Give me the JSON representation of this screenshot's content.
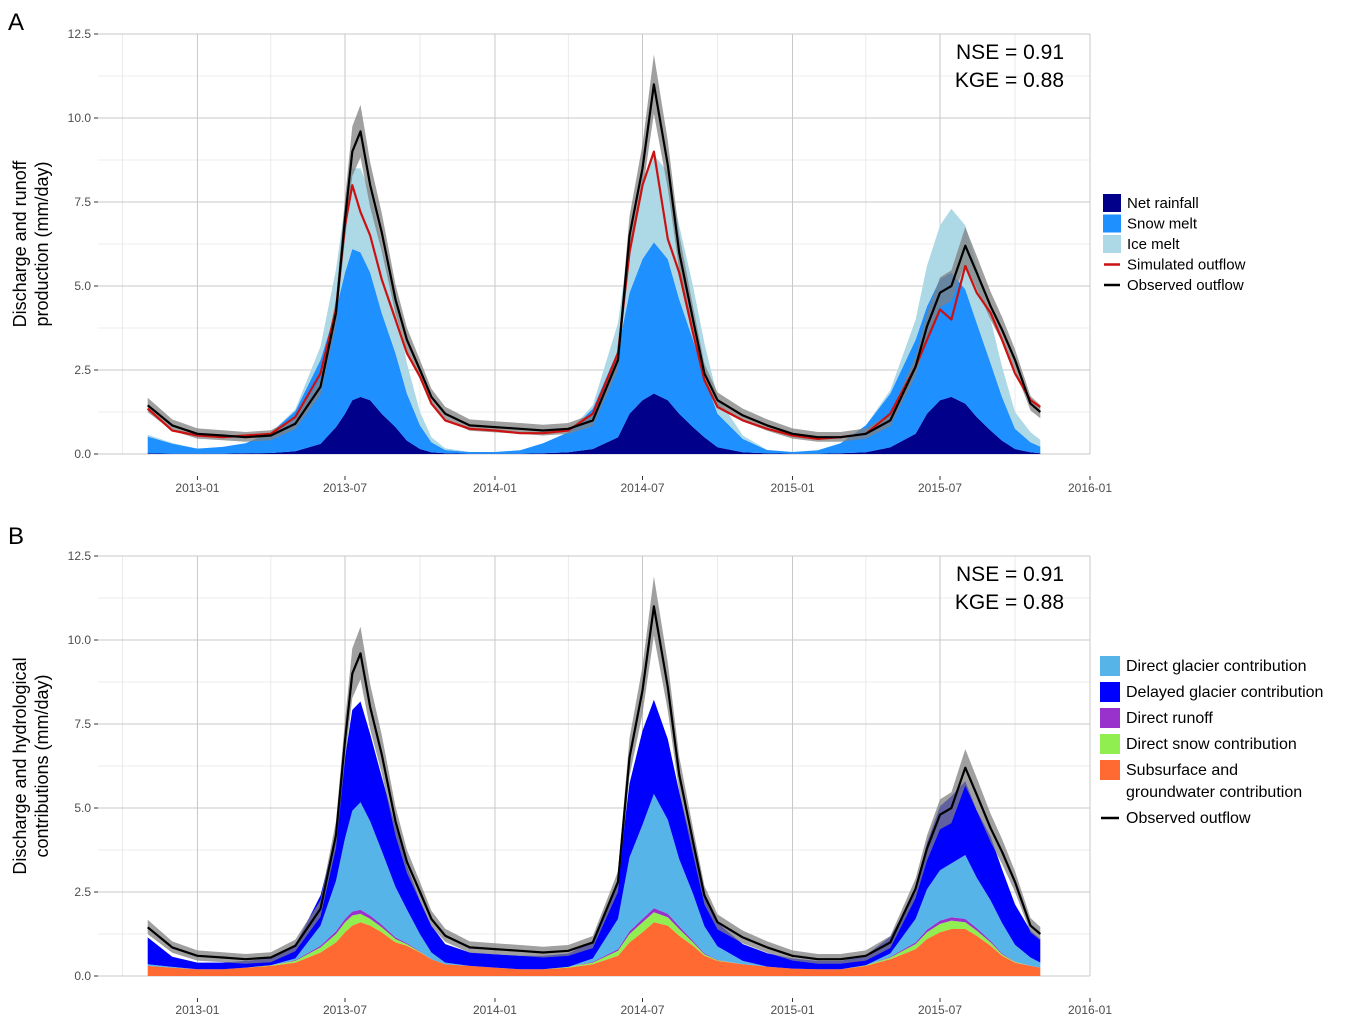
{
  "chart_data": [
    {
      "panel_label": "A",
      "type": "area",
      "ylabel": "Discharge and runoff\nproduction (mm/day)",
      "ylim": [
        0,
        12.5
      ],
      "y_ticks": [
        "0.0",
        "2.5",
        "5.0",
        "7.5",
        "10.0",
        "12.5"
      ],
      "y_tick_values": [
        0,
        2.5,
        5,
        7.5,
        10,
        12.5
      ],
      "x_ticks": [
        "2013-01",
        "2013-07",
        "2014-01",
        "2014-07",
        "2015-01",
        "2015-07",
        "2016-01"
      ],
      "x_tick_dates": [
        "2013-01-01",
        "2013-07-01",
        "2014-01-01",
        "2014-07-01",
        "2015-01-01",
        "2015-07-01",
        "2016-01-01"
      ],
      "xlim": [
        "2012-09-01",
        "2016-01-01"
      ],
      "grid": true,
      "legend_position": "right",
      "annotations": [
        "NSE = 0.91",
        "KGE = 0.88"
      ],
      "legend": [
        {
          "label": "Net rainfall",
          "kind": "fill",
          "color": "#00008b"
        },
        {
          "label": "Snow melt",
          "kind": "fill",
          "color": "#1e90ff"
        },
        {
          "label": "Ice melt",
          "kind": "fill",
          "color": "#add8e6"
        },
        {
          "label": "Simulated outflow",
          "kind": "line",
          "color": "#cc1111"
        },
        {
          "label": "Observed outflow",
          "kind": "line",
          "color": "#000000"
        }
      ],
      "x": [
        "2012-11-01",
        "2012-12-01",
        "2013-01-01",
        "2013-02-01",
        "2013-03-01",
        "2013-04-01",
        "2013-05-01",
        "2013-06-01",
        "2013-06-20",
        "2013-07-01",
        "2013-07-10",
        "2013-07-20",
        "2013-08-01",
        "2013-08-15",
        "2013-09-01",
        "2013-09-15",
        "2013-10-01",
        "2013-10-15",
        "2013-11-01",
        "2013-12-01",
        "2014-01-01",
        "2014-02-01",
        "2014-03-01",
        "2014-04-01",
        "2014-05-01",
        "2014-06-01",
        "2014-06-15",
        "2014-07-01",
        "2014-07-15",
        "2014-08-01",
        "2014-08-15",
        "2014-09-01",
        "2014-09-15",
        "2014-10-01",
        "2014-11-01",
        "2014-12-01",
        "2015-01-01",
        "2015-02-01",
        "2015-03-01",
        "2015-04-01",
        "2015-05-01",
        "2015-06-01",
        "2015-06-15",
        "2015-07-01",
        "2015-07-15",
        "2015-08-01",
        "2015-08-15",
        "2015-09-01",
        "2015-09-15",
        "2015-10-01",
        "2015-10-20",
        "2015-11-01"
      ],
      "series": [
        {
          "name": "Net rainfall",
          "color": "#00008b",
          "values": [
            0.02,
            0.01,
            0.01,
            0.01,
            0.02,
            0.03,
            0.08,
            0.3,
            0.8,
            1.2,
            1.6,
            1.7,
            1.6,
            1.2,
            0.8,
            0.4,
            0.15,
            0.05,
            0.02,
            0.01,
            0.01,
            0.01,
            0.02,
            0.05,
            0.15,
            0.5,
            1.2,
            1.6,
            1.8,
            1.6,
            1.2,
            0.8,
            0.5,
            0.2,
            0.05,
            0.02,
            0.01,
            0.01,
            0.02,
            0.05,
            0.2,
            0.6,
            1.2,
            1.6,
            1.7,
            1.5,
            1.1,
            0.7,
            0.4,
            0.15,
            0.05,
            0.02
          ]
        },
        {
          "name": "Snow melt",
          "color": "#1e90ff",
          "values": [
            0.5,
            0.3,
            0.15,
            0.2,
            0.3,
            0.6,
            1.2,
            2.5,
            3.5,
            4.2,
            4.5,
            4.3,
            3.8,
            3.0,
            2.2,
            1.4,
            0.7,
            0.3,
            0.1,
            0.05,
            0.05,
            0.1,
            0.3,
            0.6,
            1.2,
            2.6,
            3.6,
            4.2,
            4.5,
            4.2,
            3.4,
            2.6,
            1.8,
            1.0,
            0.4,
            0.1,
            0.05,
            0.1,
            0.3,
            0.8,
            1.6,
            2.8,
            3.2,
            3.6,
            3.7,
            3.4,
            2.8,
            2.0,
            1.3,
            0.6,
            0.3,
            0.2
          ]
        },
        {
          "name": "Ice melt",
          "color": "#add8e6",
          "values": [
            0.05,
            0.02,
            0.0,
            0.0,
            0.0,
            0.0,
            0.05,
            0.4,
            1.2,
            2.0,
            2.4,
            2.5,
            2.4,
            2.0,
            1.5,
            0.9,
            0.4,
            0.15,
            0.05,
            0.0,
            0.0,
            0.0,
            0.0,
            0.0,
            0.1,
            0.8,
            1.6,
            2.2,
            2.6,
            2.6,
            2.2,
            1.6,
            1.0,
            0.5,
            0.1,
            0.0,
            0.0,
            0.0,
            0.0,
            0.0,
            0.1,
            0.6,
            1.2,
            1.6,
            1.9,
            1.9,
            1.7,
            1.3,
            0.9,
            0.5,
            0.3,
            0.2
          ]
        },
        {
          "name": "Simulated outflow",
          "color": "#cc1111",
          "values": [
            1.35,
            0.7,
            0.55,
            0.5,
            0.55,
            0.6,
            1.1,
            2.4,
            4.3,
            6.8,
            8.0,
            7.2,
            6.5,
            5.2,
            4.0,
            3.0,
            2.3,
            1.5,
            1.0,
            0.75,
            0.7,
            0.62,
            0.62,
            0.7,
            1.2,
            3.0,
            6.0,
            8.0,
            9.0,
            6.4,
            5.4,
            3.6,
            2.2,
            1.4,
            1.0,
            0.75,
            0.55,
            0.45,
            0.5,
            0.6,
            1.2,
            2.6,
            3.4,
            4.3,
            4.0,
            5.6,
            4.8,
            4.2,
            3.4,
            2.4,
            1.6,
            1.4
          ]
        },
        {
          "name": "Observed outflow",
          "color": "#000000",
          "values": [
            1.45,
            0.85,
            0.6,
            0.55,
            0.5,
            0.55,
            0.9,
            2.0,
            4.2,
            7.0,
            9.0,
            9.6,
            8.0,
            6.6,
            4.6,
            3.4,
            2.5,
            1.7,
            1.2,
            0.85,
            0.8,
            0.75,
            0.7,
            0.75,
            1.0,
            2.8,
            6.5,
            8.5,
            11.0,
            8.6,
            6.0,
            4.0,
            2.4,
            1.6,
            1.15,
            0.85,
            0.6,
            0.5,
            0.5,
            0.6,
            1.0,
            2.6,
            3.8,
            4.8,
            5.0,
            6.2,
            5.4,
            4.4,
            3.7,
            2.8,
            1.5,
            1.25
          ]
        }
      ]
    },
    {
      "panel_label": "B",
      "type": "area",
      "ylabel": "Discharge and hydrological\ncontributions (mm/day)",
      "ylim": [
        0,
        12.5
      ],
      "y_ticks": [
        "0.0",
        "2.5",
        "5.0",
        "7.5",
        "10.0",
        "12.5"
      ],
      "y_tick_values": [
        0,
        2.5,
        5,
        7.5,
        10,
        12.5
      ],
      "x_ticks": [
        "2013-01",
        "2013-07",
        "2014-01",
        "2014-07",
        "2015-01",
        "2015-07",
        "2016-01"
      ],
      "x_tick_dates": [
        "2013-01-01",
        "2013-07-01",
        "2014-01-01",
        "2014-07-01",
        "2015-01-01",
        "2015-07-01",
        "2016-01-01"
      ],
      "xlim": [
        "2012-09-01",
        "2016-01-01"
      ],
      "grid": true,
      "legend_position": "right",
      "annotations": [
        "NSE = 0.91",
        "KGE = 0.88"
      ],
      "legend": [
        {
          "label": "Direct glacier contribution",
          "kind": "fill",
          "color": "#56b4e9"
        },
        {
          "label": "Delayed glacier contribution",
          "kind": "fill",
          "color": "#0000ff"
        },
        {
          "label": "Direct runoff",
          "kind": "fill",
          "color": "#9932cc"
        },
        {
          "label": "Direct snow contribution",
          "kind": "fill",
          "color": "#90ee50"
        },
        {
          "label": "Subsurface and groundwater contribution",
          "kind": "fill",
          "color": "#ff6a33"
        },
        {
          "label": "Observed outflow",
          "kind": "line",
          "color": "#000000"
        }
      ],
      "x": [
        "2012-11-01",
        "2012-12-01",
        "2013-01-01",
        "2013-02-01",
        "2013-03-01",
        "2013-04-01",
        "2013-05-01",
        "2013-06-01",
        "2013-06-20",
        "2013-07-01",
        "2013-07-10",
        "2013-07-20",
        "2013-08-01",
        "2013-08-15",
        "2013-09-01",
        "2013-09-15",
        "2013-10-01",
        "2013-10-15",
        "2013-11-01",
        "2013-12-01",
        "2014-01-01",
        "2014-02-01",
        "2014-03-01",
        "2014-04-01",
        "2014-05-01",
        "2014-06-01",
        "2014-06-15",
        "2014-07-01",
        "2014-07-15",
        "2014-08-01",
        "2014-08-15",
        "2014-09-01",
        "2014-09-15",
        "2014-10-01",
        "2014-11-01",
        "2014-12-01",
        "2015-01-01",
        "2015-02-01",
        "2015-03-01",
        "2015-04-01",
        "2015-05-01",
        "2015-06-01",
        "2015-06-15",
        "2015-07-01",
        "2015-07-15",
        "2015-08-01",
        "2015-08-15",
        "2015-09-01",
        "2015-09-15",
        "2015-10-01",
        "2015-10-20",
        "2015-11-01"
      ],
      "series": [
        {
          "name": "Subsurface and groundwater contribution",
          "color": "#ff6a33",
          "values": [
            0.3,
            0.25,
            0.2,
            0.2,
            0.25,
            0.3,
            0.4,
            0.7,
            1.0,
            1.3,
            1.5,
            1.6,
            1.5,
            1.3,
            1.0,
            0.9,
            0.7,
            0.5,
            0.35,
            0.3,
            0.25,
            0.2,
            0.2,
            0.25,
            0.35,
            0.6,
            1.0,
            1.3,
            1.6,
            1.5,
            1.2,
            0.9,
            0.6,
            0.45,
            0.35,
            0.28,
            0.22,
            0.2,
            0.2,
            0.3,
            0.5,
            0.8,
            1.1,
            1.3,
            1.4,
            1.4,
            1.2,
            0.9,
            0.6,
            0.4,
            0.3,
            0.25
          ]
        },
        {
          "name": "Direct snow contribution",
          "color": "#90ee50",
          "values": [
            0.0,
            0.0,
            0.0,
            0.0,
            0.0,
            0.02,
            0.05,
            0.15,
            0.25,
            0.3,
            0.3,
            0.25,
            0.2,
            0.15,
            0.1,
            0.05,
            0.02,
            0.0,
            0.0,
            0.0,
            0.0,
            0.0,
            0.0,
            0.02,
            0.05,
            0.15,
            0.25,
            0.3,
            0.3,
            0.25,
            0.2,
            0.1,
            0.05,
            0.02,
            0.0,
            0.0,
            0.0,
            0.0,
            0.0,
            0.02,
            0.05,
            0.15,
            0.2,
            0.25,
            0.25,
            0.2,
            0.15,
            0.1,
            0.05,
            0.02,
            0.0,
            0.0
          ]
        },
        {
          "name": "Direct runoff",
          "color": "#9932cc",
          "values": [
            0.0,
            0.0,
            0.0,
            0.0,
            0.0,
            0.0,
            0.02,
            0.05,
            0.08,
            0.1,
            0.12,
            0.12,
            0.1,
            0.08,
            0.05,
            0.03,
            0.02,
            0.0,
            0.0,
            0.0,
            0.0,
            0.0,
            0.0,
            0.0,
            0.02,
            0.05,
            0.08,
            0.1,
            0.12,
            0.1,
            0.08,
            0.05,
            0.03,
            0.01,
            0.0,
            0.0,
            0.0,
            0.0,
            0.0,
            0.0,
            0.02,
            0.05,
            0.08,
            0.1,
            0.1,
            0.1,
            0.08,
            0.05,
            0.03,
            0.01,
            0.0,
            0.0
          ]
        },
        {
          "name": "Direct glacier contribution",
          "color": "#56b4e9",
          "values": [
            0.05,
            0.02,
            0.0,
            0.0,
            0.0,
            0.0,
            0.05,
            0.6,
            1.5,
            2.4,
            3.0,
            3.2,
            2.8,
            2.2,
            1.5,
            1.0,
            0.5,
            0.2,
            0.05,
            0.0,
            0.0,
            0.0,
            0.0,
            0.0,
            0.1,
            0.9,
            2.2,
            2.8,
            3.4,
            2.8,
            2.0,
            1.4,
            0.8,
            0.4,
            0.1,
            0.0,
            0.0,
            0.0,
            0.0,
            0.0,
            0.1,
            0.7,
            1.2,
            1.5,
            1.6,
            1.9,
            1.5,
            1.2,
            0.9,
            0.5,
            0.25,
            0.15
          ]
        },
        {
          "name": "Delayed glacier contribution",
          "color": "#0000ff",
          "values": [
            0.8,
            0.3,
            0.2,
            0.2,
            0.2,
            0.2,
            0.4,
            0.9,
            1.4,
            2.4,
            3.0,
            3.0,
            2.6,
            2.2,
            1.8,
            1.3,
            1.0,
            0.8,
            0.55,
            0.4,
            0.4,
            0.4,
            0.4,
            0.4,
            0.5,
            1.2,
            2.2,
            2.8,
            2.8,
            2.4,
            2.0,
            1.4,
            1.0,
            0.7,
            0.5,
            0.4,
            0.3,
            0.25,
            0.25,
            0.3,
            0.5,
            0.8,
            1.4,
            1.9,
            2.0,
            2.2,
            2.0,
            1.9,
            1.6,
            1.2,
            0.8,
            0.7
          ]
        },
        {
          "name": "Observed outflow",
          "color": "#000000",
          "values": [
            1.45,
            0.85,
            0.6,
            0.55,
            0.5,
            0.55,
            0.9,
            2.0,
            4.2,
            7.0,
            9.0,
            9.6,
            8.0,
            6.6,
            4.6,
            3.4,
            2.5,
            1.7,
            1.2,
            0.85,
            0.8,
            0.75,
            0.7,
            0.75,
            1.0,
            2.8,
            6.5,
            8.5,
            11.0,
            8.6,
            6.0,
            4.0,
            2.4,
            1.6,
            1.15,
            0.85,
            0.6,
            0.5,
            0.5,
            0.6,
            1.0,
            2.6,
            3.8,
            4.8,
            5.0,
            6.2,
            5.4,
            4.4,
            3.7,
            2.8,
            1.5,
            1.25
          ]
        }
      ]
    }
  ]
}
